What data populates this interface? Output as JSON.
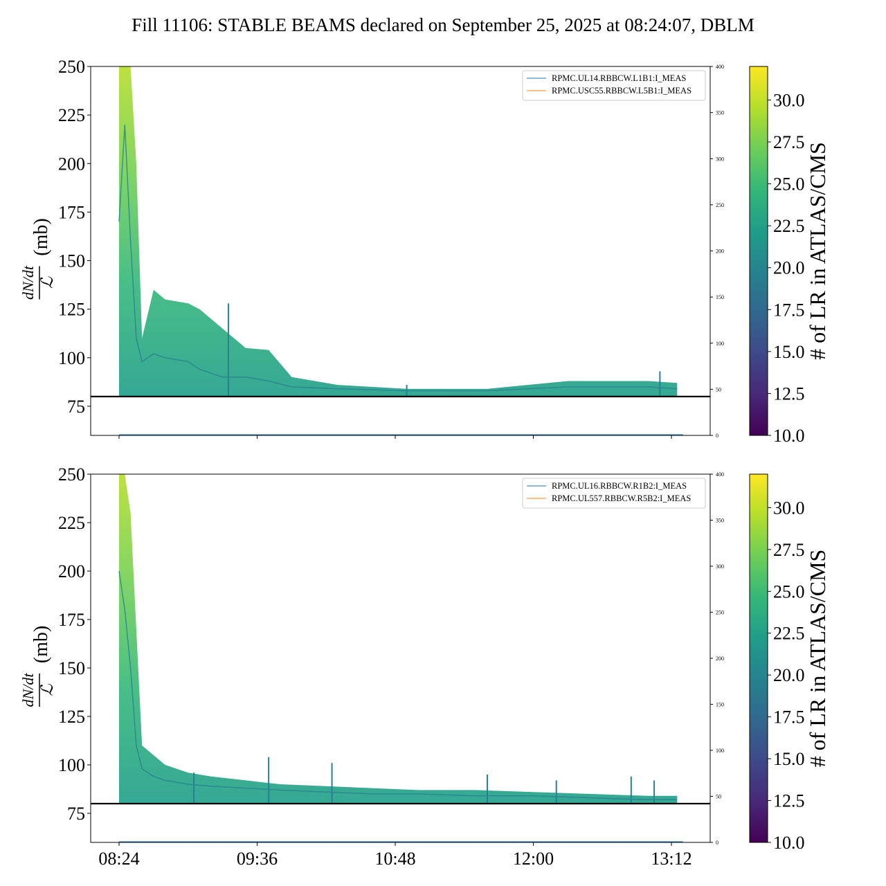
{
  "title": "Fill 11106: STABLE BEAMS declared on September 25, 2025 at 08:24:07, DBLM",
  "x_tick_labels": [
    "08:24",
    "09:36",
    "10:48",
    "12:00",
    "13:12"
  ],
  "colormap": {
    "label": "# of LR in ATLAS/CMS",
    "range": [
      10.0,
      32.0
    ],
    "ticks": [
      "10.0",
      "12.5",
      "15.0",
      "17.5",
      "20.0",
      "22.5",
      "25.0",
      "27.5",
      "30.0"
    ],
    "colors": [
      "#440154",
      "#482878",
      "#3e4989",
      "#31688e",
      "#26828e",
      "#1f9e89",
      "#35b779",
      "#6ece58",
      "#b5de2b",
      "#fde725"
    ]
  },
  "chart_data": [
    {
      "type": "line",
      "ylabel_fraction_numerator": "dN/dt",
      "ylabel_fraction_denominator": "ℒ",
      "ylabel_unit": "(mb)",
      "ylim": [
        60,
        250
      ],
      "y_ticks": [
        75,
        100,
        125,
        150,
        175,
        200,
        225,
        250
      ],
      "secondary_ylim": [
        0,
        400
      ],
      "secondary_y_ticks": [
        0,
        50,
        100,
        150,
        200,
        250,
        300,
        350,
        400
      ],
      "reference_line_y": 80,
      "series": [
        {
          "name": "RPMC.UL14.RBBCW.L1B1:I_MEAS",
          "color": "#1f77b4",
          "values": [
            0,
            0,
            0,
            0,
            0,
            0,
            0
          ]
        },
        {
          "name": "RPMC.USC55.RBBCW.L5B1:I_MEAS",
          "color": "#ff7f0e",
          "values": [
            0,
            0,
            0,
            0,
            0,
            0,
            0
          ]
        }
      ],
      "x": [
        "08:24",
        "09:00",
        "09:36",
        "10:12",
        "10:48",
        "12:00",
        "13:12"
      ],
      "band": {
        "x_min": [
          8.4,
          8.45,
          8.5,
          8.55,
          8.6,
          8.7,
          8.8,
          9.0,
          9.1,
          9.3,
          9.5,
          9.7,
          9.9,
          10.3,
          10.9,
          11.6,
          12.3,
          13.0,
          13.25
        ],
        "upper": [
          250,
          250,
          250,
          200,
          110,
          135,
          130,
          128,
          125,
          115,
          105,
          104,
          90,
          86,
          84,
          84,
          88,
          88,
          87
        ],
        "lower": [
          80,
          80,
          80,
          80,
          80,
          80,
          80,
          80,
          80,
          80,
          80,
          80,
          80,
          80,
          80,
          80,
          80,
          80,
          80
        ],
        "mid": [
          170,
          220,
          160,
          110,
          98,
          102,
          100,
          98,
          94,
          90,
          90,
          88,
          85,
          84,
          83,
          83,
          85,
          85,
          84
        ],
        "spikes": [
          [
            9.35,
            128
          ],
          [
            13.1,
            93
          ],
          [
            10.9,
            86
          ]
        ]
      }
    },
    {
      "type": "line",
      "ylabel_fraction_numerator": "dN/dt",
      "ylabel_fraction_denominator": "ℒ",
      "ylabel_unit": "(mb)",
      "ylim": [
        60,
        250
      ],
      "y_ticks": [
        75,
        100,
        125,
        150,
        175,
        200,
        225,
        250
      ],
      "secondary_ylim": [
        0,
        400
      ],
      "secondary_y_ticks": [
        0,
        50,
        100,
        150,
        200,
        250,
        300,
        350,
        400
      ],
      "reference_line_y": 80,
      "series": [
        {
          "name": "RPMC.UL16.RBBCW.R1B2:I_MEAS",
          "color": "#1f77b4",
          "values": [
            0,
            0,
            0,
            0,
            0,
            0,
            0
          ]
        },
        {
          "name": "RPMC.UL557.RBBCW.R5B2:I_MEAS",
          "color": "#ff7f0e",
          "values": [
            0,
            0,
            0,
            0,
            0,
            0,
            0
          ]
        }
      ],
      "x": [
        "08:24",
        "09:00",
        "09:36",
        "10:12",
        "10:48",
        "12:00",
        "13:12"
      ],
      "band": {
        "x_min": [
          8.4,
          8.45,
          8.5,
          8.55,
          8.6,
          8.7,
          8.8,
          9.0,
          9.2,
          9.5,
          9.8,
          10.2,
          10.6,
          11.0,
          11.5,
          12.0,
          12.5,
          13.0,
          13.25
        ],
        "upper": [
          250,
          250,
          230,
          170,
          110,
          105,
          100,
          96,
          94,
          92,
          90,
          89,
          88,
          87,
          87,
          86,
          85,
          84,
          84
        ],
        "lower": [
          80,
          80,
          80,
          80,
          80,
          80,
          80,
          80,
          80,
          80,
          80,
          80,
          80,
          80,
          80,
          80,
          80,
          80,
          80
        ],
        "mid": [
          200,
          180,
          150,
          110,
          98,
          94,
          92,
          90,
          89,
          88,
          87,
          86,
          85,
          85,
          84,
          84,
          83,
          82,
          82
        ],
        "spikes": [
          [
            9.05,
            96
          ],
          [
            9.7,
            104
          ],
          [
            10.25,
            101
          ],
          [
            11.6,
            95
          ],
          [
            12.2,
            92
          ],
          [
            12.85,
            94
          ],
          [
            13.05,
            92
          ]
        ]
      }
    }
  ]
}
